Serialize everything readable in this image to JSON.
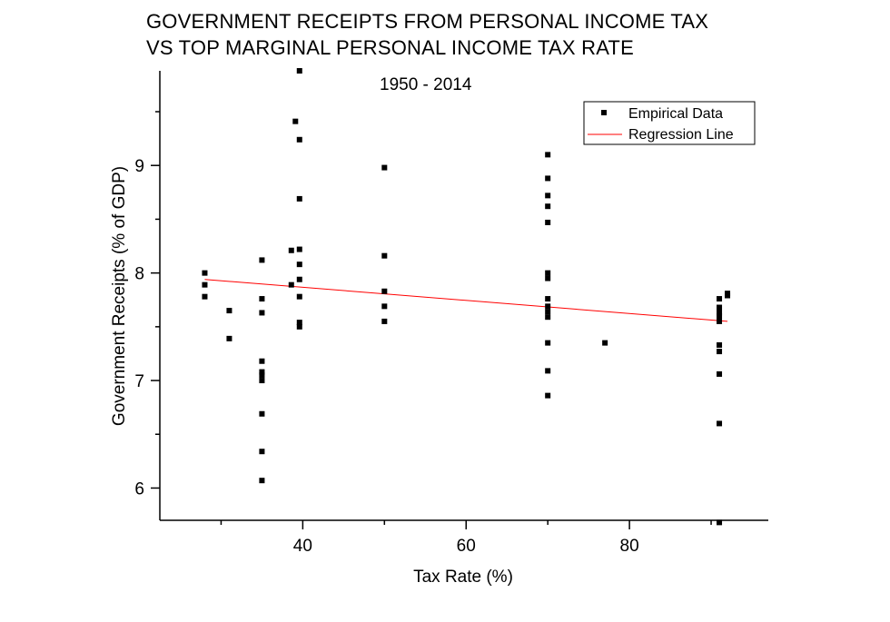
{
  "title_lines": [
    "GOVERNMENT RECEIPTS FROM PERSONAL INCOME TAX",
    "VS TOP MARGINAL PERSONAL INCOME TAX RATE"
  ],
  "chart_data": {
    "type": "scatter",
    "title": "GOVERNMENT RECEIPTS FROM PERSONAL INCOME TAX VS TOP MARGINAL PERSONAL INCOME TAX RATE",
    "subtitle": "1950 - 2014",
    "xlabel": "Tax Rate (%)",
    "ylabel": "Government Receipts (% of GDP)",
    "xlim": [
      22.5,
      97
    ],
    "ylim": [
      5.7,
      9.88
    ],
    "xticks": [
      40,
      60,
      80
    ],
    "xticks_minor": [
      30,
      50,
      70,
      90
    ],
    "yticks": [
      6,
      7,
      8,
      9
    ],
    "yticks_minor": [
      6.5,
      7.5,
      8.5,
      9.5
    ],
    "grid": false,
    "legend_position": "top-right",
    "legend": [
      {
        "label": "Empirical Data",
        "marker": "square",
        "color": "#000000"
      },
      {
        "label": "Regression Line",
        "marker": "line",
        "color": "#ff0000"
      }
    ],
    "series": [
      {
        "name": "Empirical Data",
        "marker": "square",
        "color": "#000000",
        "points": [
          [
            28,
            8.0
          ],
          [
            28,
            7.89
          ],
          [
            28,
            7.78
          ],
          [
            31,
            7.65
          ],
          [
            31,
            7.39
          ],
          [
            35,
            8.12
          ],
          [
            35,
            7.76
          ],
          [
            35,
            7.63
          ],
          [
            35,
            7.18
          ],
          [
            35,
            7.08
          ],
          [
            35,
            7.05
          ],
          [
            35,
            7.0
          ],
          [
            35,
            6.69
          ],
          [
            35,
            6.34
          ],
          [
            35,
            6.07
          ],
          [
            38.6,
            8.21
          ],
          [
            38.6,
            7.89
          ],
          [
            39.1,
            9.41
          ],
          [
            39.6,
            9.88
          ],
          [
            39.6,
            9.24
          ],
          [
            39.6,
            8.69
          ],
          [
            39.6,
            8.22
          ],
          [
            39.6,
            8.08
          ],
          [
            39.6,
            7.94
          ],
          [
            39.6,
            7.78
          ],
          [
            39.6,
            7.54
          ],
          [
            39.6,
            7.5
          ],
          [
            50,
            8.98
          ],
          [
            50,
            8.16
          ],
          [
            50,
            7.83
          ],
          [
            50,
            7.69
          ],
          [
            50,
            7.55
          ],
          [
            70,
            9.1
          ],
          [
            70,
            8.88
          ],
          [
            70,
            8.72
          ],
          [
            70,
            8.62
          ],
          [
            70,
            8.47
          ],
          [
            70,
            8.0
          ],
          [
            70,
            7.95
          ],
          [
            70,
            7.76
          ],
          [
            70,
            7.69
          ],
          [
            70,
            7.64
          ],
          [
            70,
            7.59
          ],
          [
            70,
            7.35
          ],
          [
            70,
            7.09
          ],
          [
            70,
            6.86
          ],
          [
            77,
            7.35
          ],
          [
            91,
            7.76
          ],
          [
            91,
            7.68
          ],
          [
            91,
            7.63
          ],
          [
            91,
            7.6
          ],
          [
            91,
            7.55
          ],
          [
            91,
            7.33
          ],
          [
            91,
            7.27
          ],
          [
            91,
            7.06
          ],
          [
            91,
            6.6
          ],
          [
            91,
            5.68
          ],
          [
            92,
            7.81
          ],
          [
            92,
            7.79
          ]
        ]
      },
      {
        "name": "Regression Line",
        "type": "line",
        "color": "#ff0000",
        "x": [
          28,
          92
        ],
        "y": [
          7.94,
          7.55
        ]
      }
    ]
  }
}
